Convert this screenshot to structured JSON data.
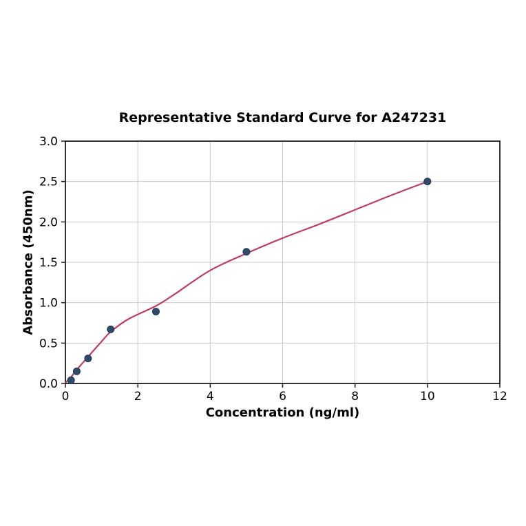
{
  "figure": {
    "background": "#ffffff"
  },
  "chart_data": {
    "type": "scatter",
    "title": "Representative Standard Curve for A247231",
    "xlabel": "Concentration (ng/ml)",
    "ylabel": "Absorbance (450nm)",
    "xlim": [
      0,
      12
    ],
    "ylim": [
      0,
      3.0
    ],
    "x_ticks": [
      0,
      2,
      4,
      6,
      8,
      10,
      12
    ],
    "x_tick_labels": [
      "0",
      "2",
      "4",
      "6",
      "8",
      "10",
      "12"
    ],
    "y_ticks": [
      0.0,
      0.5,
      1.0,
      1.5,
      2.0,
      2.5,
      3.0
    ],
    "y_tick_labels": [
      "0.0",
      "0.5",
      "1.0",
      "1.5",
      "2.0",
      "2.5",
      "3.0"
    ],
    "grid": true,
    "legend": null,
    "points": [
      [
        0.156,
        0.04
      ],
      [
        0.3125,
        0.15
      ],
      [
        0.625,
        0.31
      ],
      [
        1.25,
        0.67
      ],
      [
        2.5,
        0.89
      ],
      [
        5,
        1.63
      ],
      [
        10,
        2.5
      ]
    ],
    "fit_curve": [
      [
        0,
        0.01
      ],
      [
        0.156,
        0.08
      ],
      [
        0.3125,
        0.17
      ],
      [
        0.625,
        0.33
      ],
      [
        1.0,
        0.52
      ],
      [
        1.25,
        0.64
      ],
      [
        1.75,
        0.8
      ],
      [
        2.5,
        0.96
      ],
      [
        3.0,
        1.1
      ],
      [
        4.0,
        1.4
      ],
      [
        5.0,
        1.61
      ],
      [
        6.0,
        1.8
      ],
      [
        7.0,
        1.97
      ],
      [
        8.0,
        2.15
      ],
      [
        9.0,
        2.33
      ],
      [
        10.0,
        2.5
      ]
    ],
    "colors": {
      "point": "#2e4b6b",
      "point_edge": "#22384f",
      "curve": "#c13b5e",
      "grid": "#c9c9c9",
      "axis": "#1c1c1c",
      "text": "#000000"
    },
    "marker_radius": 5
  }
}
